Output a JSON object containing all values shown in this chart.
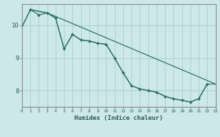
{
  "xlabel": "Humidex (Indice chaleur)",
  "bg_color": "#cce8e8",
  "grid_color": "#aacccc",
  "line_color": "#2a7060",
  "xlim": [
    0,
    23
  ],
  "ylim": [
    7.5,
    10.65
  ],
  "yticks": [
    8,
    9,
    10
  ],
  "xticks": [
    0,
    1,
    2,
    3,
    4,
    5,
    6,
    7,
    8,
    9,
    10,
    11,
    12,
    13,
    14,
    15,
    16,
    17,
    18,
    19,
    20,
    21,
    22,
    23
  ],
  "line1_x": [
    0,
    1,
    3,
    23
  ],
  "line1_y": [
    9.95,
    10.48,
    10.38,
    8.2
  ],
  "line2_x": [
    1,
    2,
    3,
    4,
    5,
    6,
    7,
    8,
    9,
    10,
    11,
    12,
    13,
    14,
    15,
    16,
    17,
    18,
    19,
    20,
    21,
    22
  ],
  "line2_y": [
    10.48,
    10.32,
    10.38,
    10.22,
    9.28,
    9.72,
    9.55,
    9.52,
    9.45,
    9.42,
    9.0,
    8.55,
    8.15,
    8.05,
    8.0,
    7.95,
    7.82,
    7.75,
    7.7,
    7.65,
    7.75,
    8.2
  ],
  "line3_x": [
    0,
    1,
    3,
    4,
    5,
    6,
    7,
    8,
    9,
    10,
    11,
    12,
    13,
    14,
    15,
    16,
    17,
    18,
    19,
    20,
    21,
    22,
    23
  ],
  "line3_y": [
    9.95,
    10.48,
    10.38,
    10.22,
    9.28,
    9.72,
    9.55,
    9.52,
    9.45,
    9.42,
    9.0,
    8.55,
    8.15,
    8.05,
    8.0,
    7.95,
    7.82,
    7.75,
    7.7,
    7.65,
    7.75,
    8.2,
    8.2
  ]
}
